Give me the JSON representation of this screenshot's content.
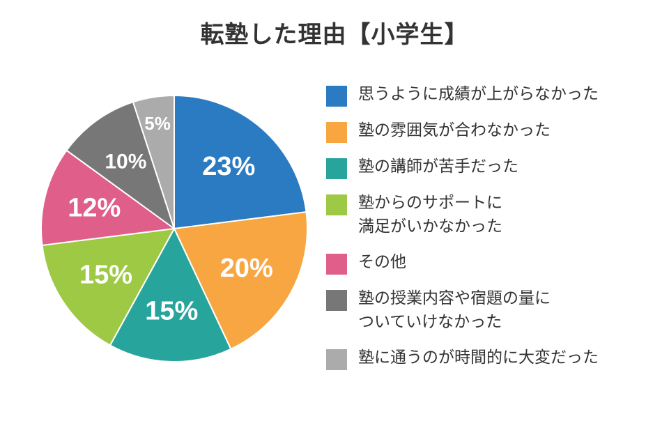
{
  "chart_data": {
    "type": "pie",
    "title": "転塾した理由【小学生】",
    "slices": [
      {
        "label": "思うように成績が上がらなかった",
        "value": 23,
        "value_label": "23%",
        "color": "#2b7bc2"
      },
      {
        "label": "塾の雰囲気が合わなかった",
        "value": 20,
        "value_label": "20%",
        "color": "#f7a641"
      },
      {
        "label": "塾の講師が苦手だった",
        "value": 15,
        "value_label": "15%",
        "color": "#27a59d"
      },
      {
        "label": "塾からのサポートに\n満足がいかなかった",
        "value": 15,
        "value_label": "15%",
        "color": "#9dc944"
      },
      {
        "label": "その他",
        "value": 12,
        "value_label": "12%",
        "color": "#df5e8a"
      },
      {
        "label": "塾の授業内容や宿題の量に\nついていけなかった",
        "value": 10,
        "value_label": "10%",
        "color": "#777777"
      },
      {
        "label": "塾に通うのが時間的に大変だった",
        "value": 5,
        "value_label": "5%",
        "color": "#ababab"
      }
    ],
    "legend_position": "right"
  }
}
